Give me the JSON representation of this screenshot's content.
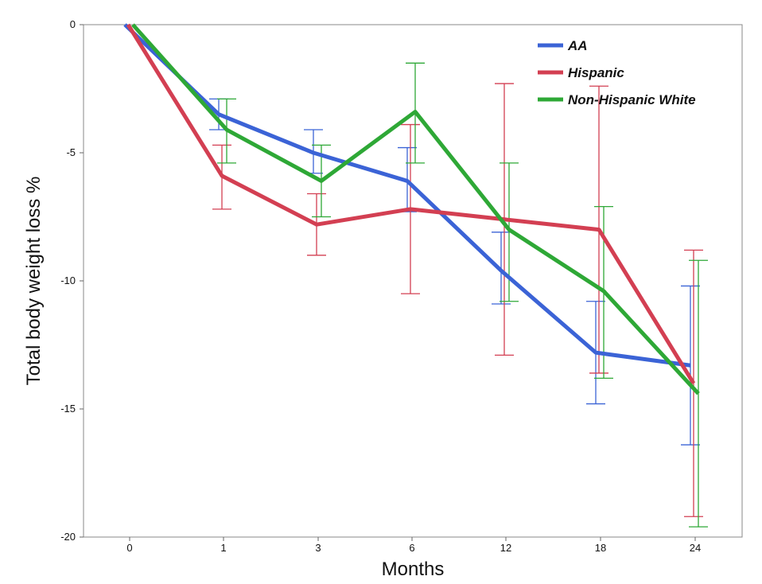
{
  "chart_data": {
    "type": "line",
    "xlabel": "Months",
    "ylabel": "Total body weight loss %",
    "categories": [
      "0",
      "1",
      "3",
      "6",
      "12",
      "18",
      "24"
    ],
    "ylim": [
      -20,
      0
    ],
    "yticks": [
      0,
      -5,
      -10,
      -15,
      -20
    ],
    "grid": false,
    "legend_position": "top-right",
    "series": [
      {
        "name": "AA",
        "color": "#3b63d6",
        "values": [
          0,
          -3.5,
          -5.0,
          -6.1,
          -9.6,
          -12.8,
          -13.3
        ],
        "error_low": [
          null,
          -4.1,
          -5.8,
          -7.3,
          -10.9,
          -14.8,
          -16.4
        ],
        "error_high": [
          null,
          -2.9,
          -4.1,
          -4.8,
          -8.1,
          -10.8,
          -10.2
        ]
      },
      {
        "name": "Hispanic",
        "color": "#d33f52",
        "values": [
          0,
          -5.9,
          -7.8,
          -7.2,
          -7.6,
          -8.0,
          -14.0
        ],
        "error_low": [
          null,
          -7.2,
          -9.0,
          -10.5,
          -12.9,
          -13.6,
          -19.2
        ],
        "error_high": [
          null,
          -4.7,
          -6.6,
          -3.9,
          -2.3,
          -2.4,
          -8.8
        ]
      },
      {
        "name": "Non-Hispanic White",
        "color": "#2ea836",
        "values": [
          0,
          -4.1,
          -6.1,
          -3.4,
          -8.0,
          -10.4,
          -14.4
        ],
        "error_low": [
          null,
          -5.4,
          -7.5,
          -5.4,
          -10.8,
          -13.8,
          -19.6
        ],
        "error_high": [
          null,
          -2.9,
          -4.7,
          -1.5,
          -5.4,
          -7.1,
          -9.2
        ]
      }
    ]
  }
}
